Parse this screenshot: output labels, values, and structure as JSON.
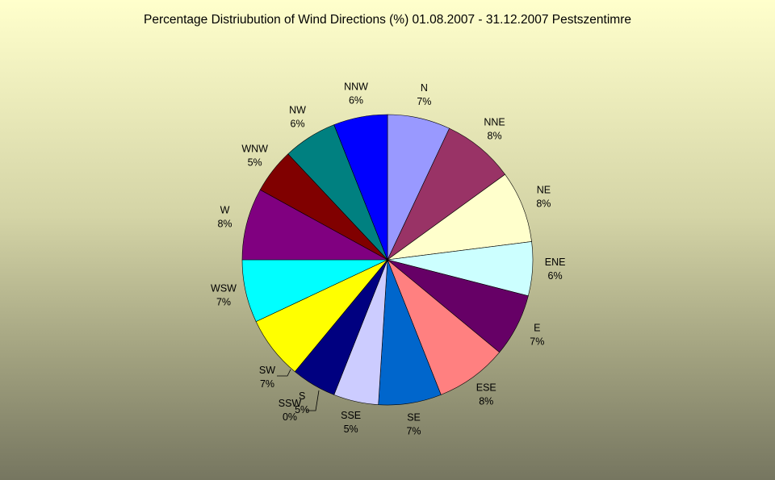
{
  "chart_data": {
    "type": "pie",
    "title": "Percentage Distriubution of Wind Directions (%) 01.08.2007 - 31.12.2007 Pestszentimre",
    "slices": [
      {
        "label": "N",
        "value": 7,
        "value_label": "7%",
        "color": "#9999ff"
      },
      {
        "label": "NNE",
        "value": 8,
        "value_label": "8%",
        "color": "#993366"
      },
      {
        "label": "NE",
        "value": 8,
        "value_label": "8%",
        "color": "#ffffcc"
      },
      {
        "label": "ENE",
        "value": 6,
        "value_label": "6%",
        "color": "#ccffff"
      },
      {
        "label": "E",
        "value": 7,
        "value_label": "7%",
        "color": "#660066"
      },
      {
        "label": "ESE",
        "value": 8,
        "value_label": "8%",
        "color": "#ff8080"
      },
      {
        "label": "SE",
        "value": 7,
        "value_label": "7%",
        "color": "#0066cc"
      },
      {
        "label": "SSE",
        "value": 5,
        "value_label": "5%",
        "color": "#ccccff"
      },
      {
        "label": "S",
        "value": 5,
        "value_label": "5%",
        "color": "#000080"
      },
      {
        "label": "SSW",
        "value": 0,
        "value_label": "0%",
        "color": "#ff00ff"
      },
      {
        "label": "SW",
        "value": 7,
        "value_label": "7%",
        "color": "#ffff00"
      },
      {
        "label": "WSW",
        "value": 7,
        "value_label": "7%",
        "color": "#00ffff"
      },
      {
        "label": "W",
        "value": 8,
        "value_label": "8%",
        "color": "#800080"
      },
      {
        "label": "WNW",
        "value": 5,
        "value_label": "5%",
        "color": "#800000"
      },
      {
        "label": "NW",
        "value": 6,
        "value_label": "6%",
        "color": "#008080"
      },
      {
        "label": "NNW",
        "value": 6,
        "value_label": "6%",
        "color": "#0000ff"
      }
    ]
  }
}
